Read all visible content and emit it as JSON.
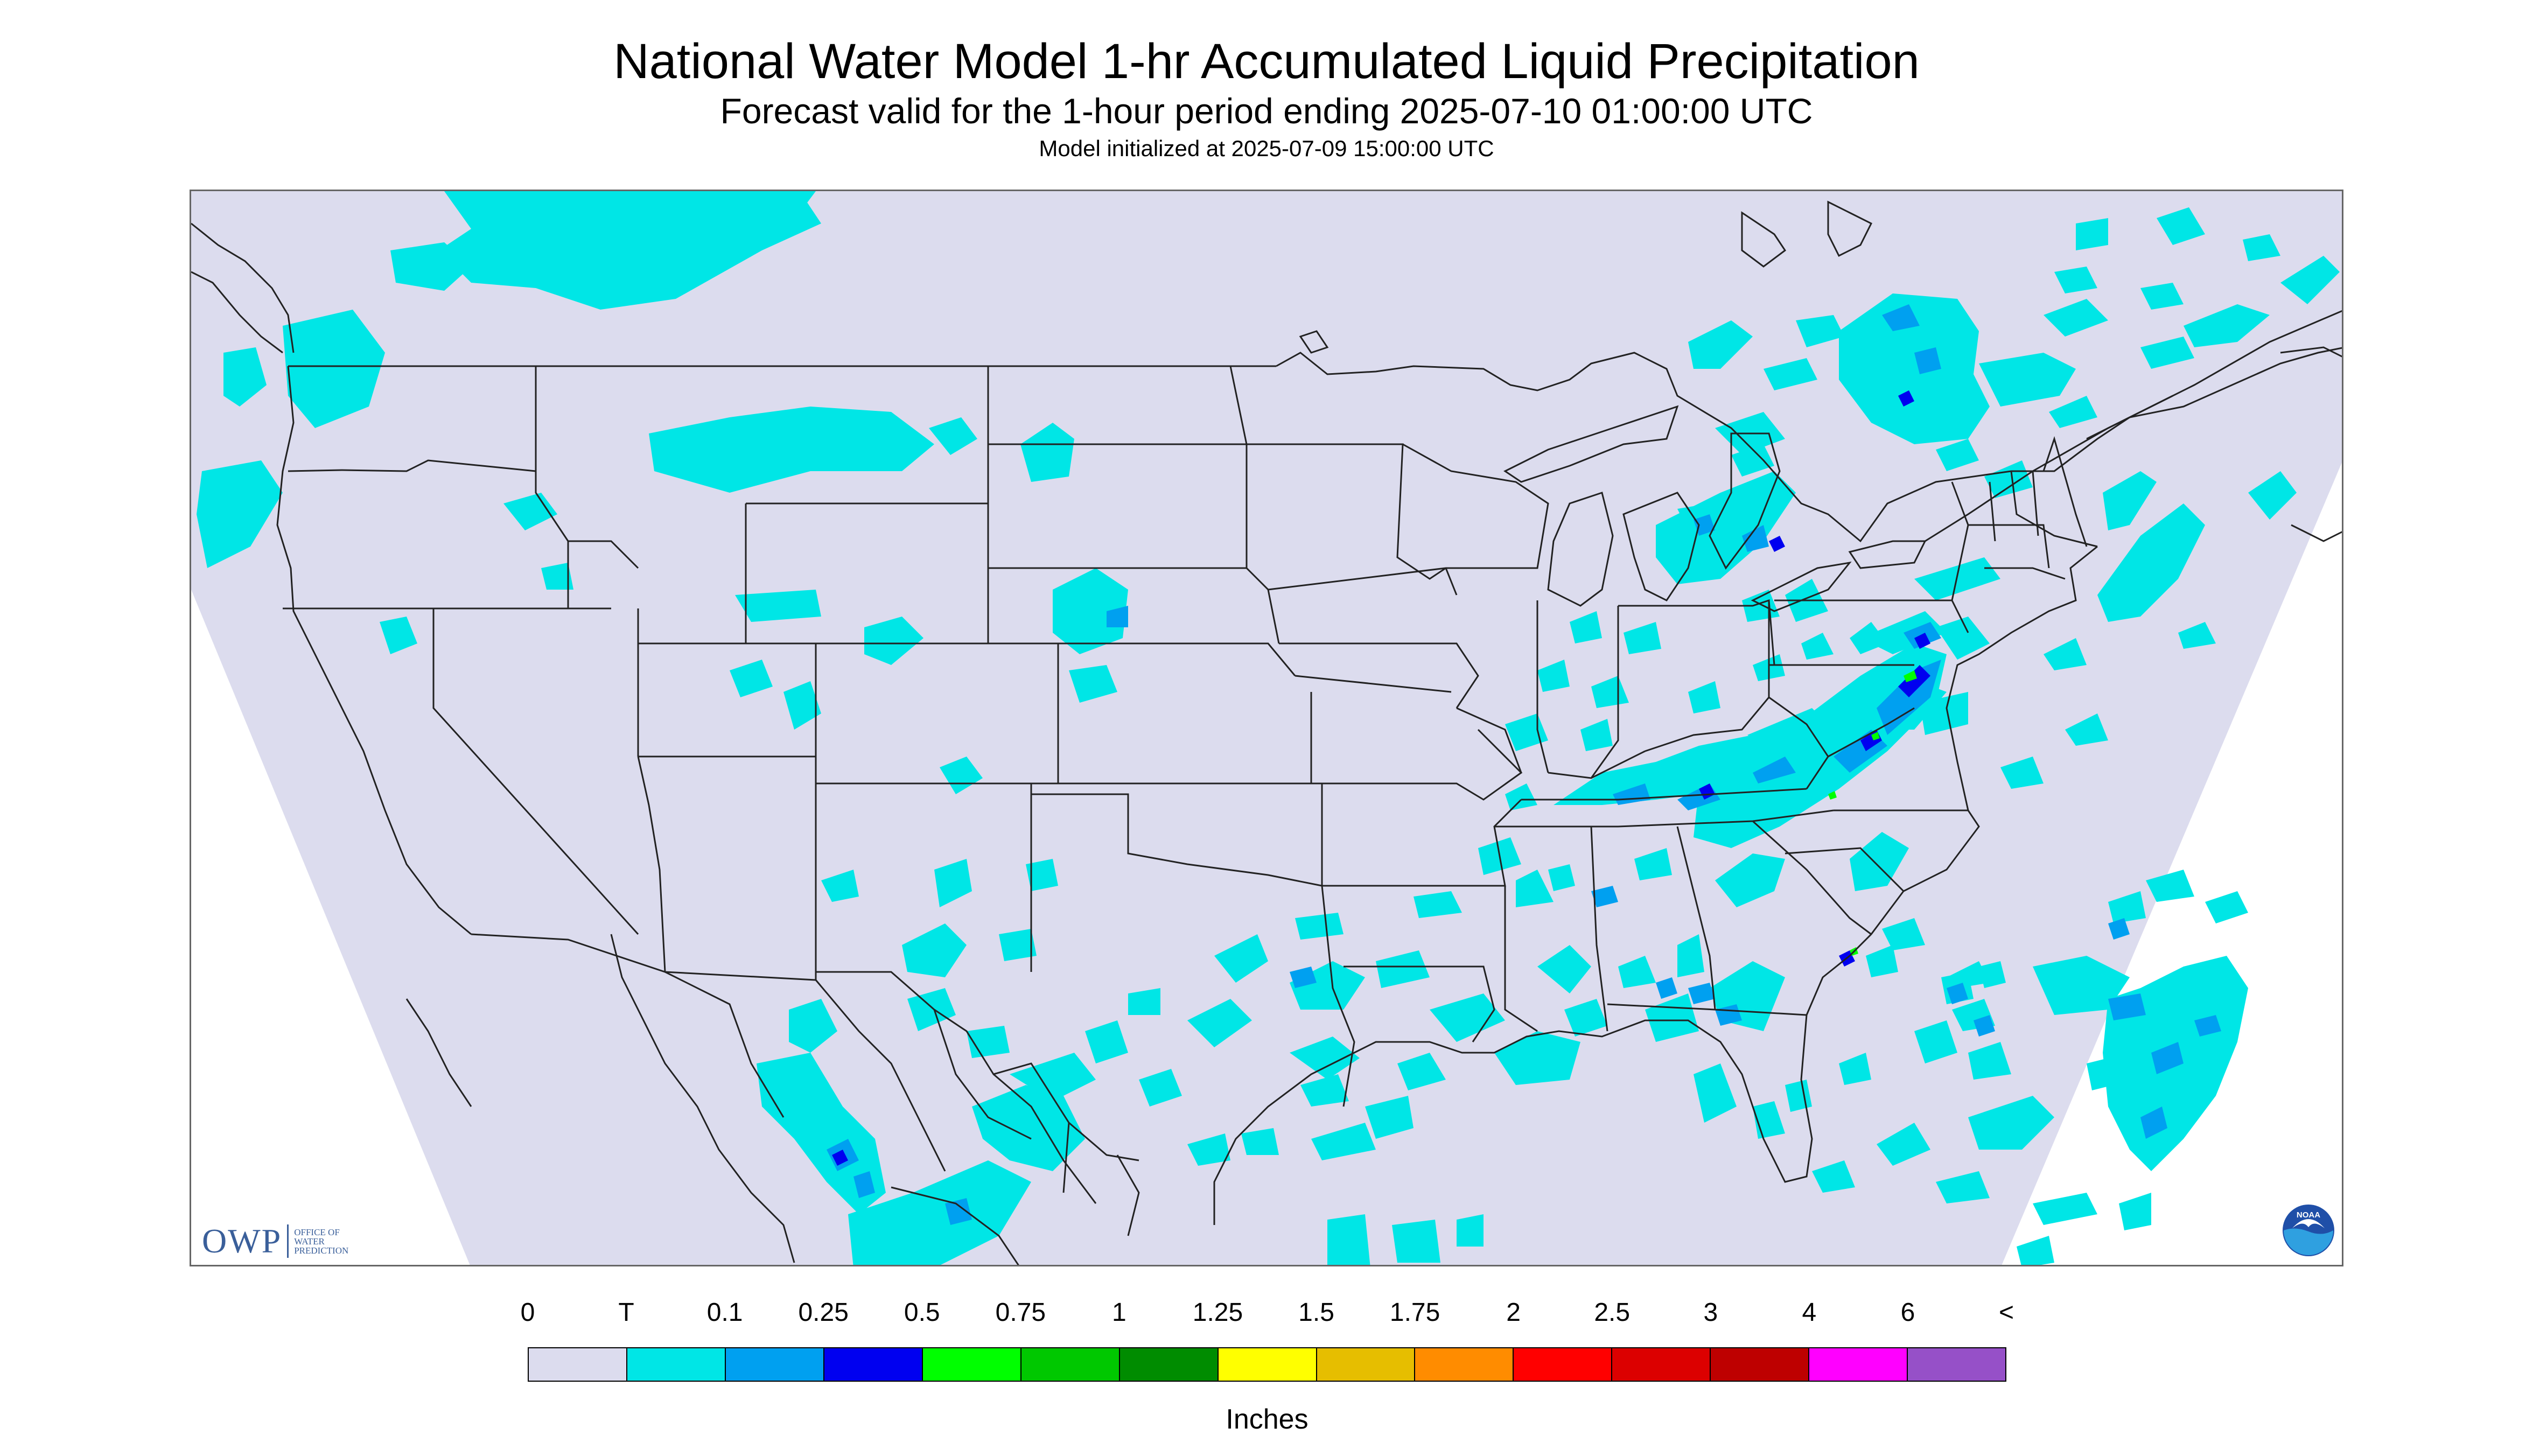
{
  "title": "National Water Model 1-hr Accumulated Liquid Precipitation",
  "subtitle": "Forecast valid for the 1-hour period ending 2025-07-10 01:00:00 UTC",
  "init_line": "Model initialized at 2025-07-09 15:00:00 UTC",
  "owp_logo": {
    "letters": "OWP",
    "sub_lines": [
      "OFFICE OF",
      "WATER",
      "PREDICTION"
    ]
  },
  "noaa_logo": {
    "icon": "noaa-logo",
    "text": "NOAA"
  },
  "legend": {
    "tick_labels": [
      "0",
      "T",
      "0.1",
      "0.25",
      "0.5",
      "0.75",
      "1",
      "1.25",
      "1.5",
      "1.75",
      "2",
      "2.5",
      "3",
      "4",
      "6",
      "<"
    ],
    "colors": [
      "#dcdcee",
      "#00e6e6",
      "#00a0f0",
      "#0000f0",
      "#00ff00",
      "#00c800",
      "#008c00",
      "#ffff00",
      "#e6be00",
      "#ff8c00",
      "#ff0000",
      "#dc0000",
      "#be0000",
      "#ff00ff",
      "#9650c8"
    ],
    "unit": "Inches"
  },
  "map": {
    "colors": {
      "no_data": "#ffffff",
      "domain": "#dcdcee",
      "trace": "#00e6e6",
      "light": "#00a0f0",
      "moderate": "#0000f0",
      "heavy": "#00ff00",
      "boundary": "#222222"
    }
  }
}
